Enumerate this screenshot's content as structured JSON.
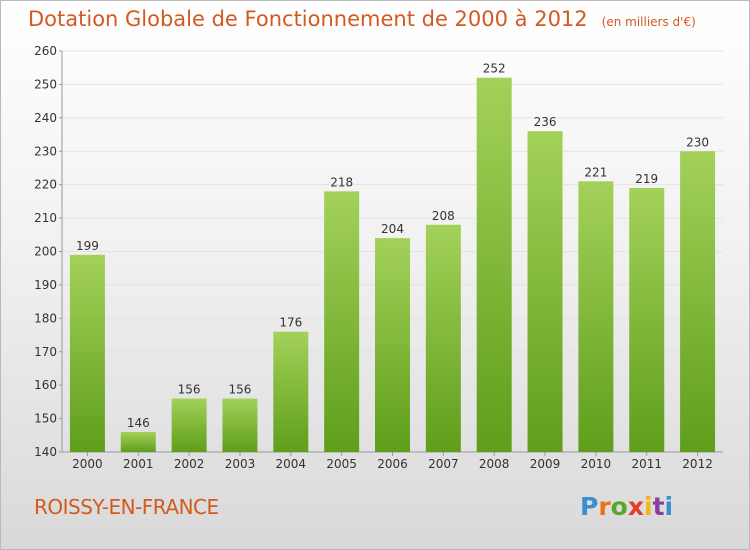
{
  "header": {
    "title": "Dotation Globale de Fonctionnement de 2000 à 2012",
    "subtitle": "(en milliers d'€)"
  },
  "footer": {
    "commune": "ROISSY-EN-FRANCE",
    "logo": {
      "letters": [
        "P",
        "r",
        "o",
        "x",
        "i",
        "t",
        "i"
      ],
      "colors": [
        "#3a8fd0",
        "#e8731c",
        "#5aa62c",
        "#e53b2a",
        "#f2b51a",
        "#8a3fa0",
        "#3a8fd0"
      ]
    }
  },
  "colors": {
    "accent": "#d35a1f",
    "bar_light": "#a3d15a",
    "bar_dark": "#5f9e1b"
  },
  "chart_data": {
    "type": "bar",
    "categories": [
      "2000",
      "2001",
      "2002",
      "2003",
      "2004",
      "2005",
      "2006",
      "2007",
      "2008",
      "2009",
      "2010",
      "2011",
      "2012"
    ],
    "values": [
      199,
      146,
      156,
      156,
      176,
      218,
      204,
      208,
      252,
      236,
      221,
      219,
      230
    ],
    "title": "Dotation Globale de Fonctionnement de 2000 à 2012",
    "subtitle": "(en milliers d'€)",
    "ylim": [
      140,
      260
    ],
    "yticks": [
      140,
      150,
      160,
      170,
      180,
      190,
      200,
      210,
      220,
      230,
      240,
      250,
      260
    ],
    "grid": true,
    "data_labels": true
  }
}
